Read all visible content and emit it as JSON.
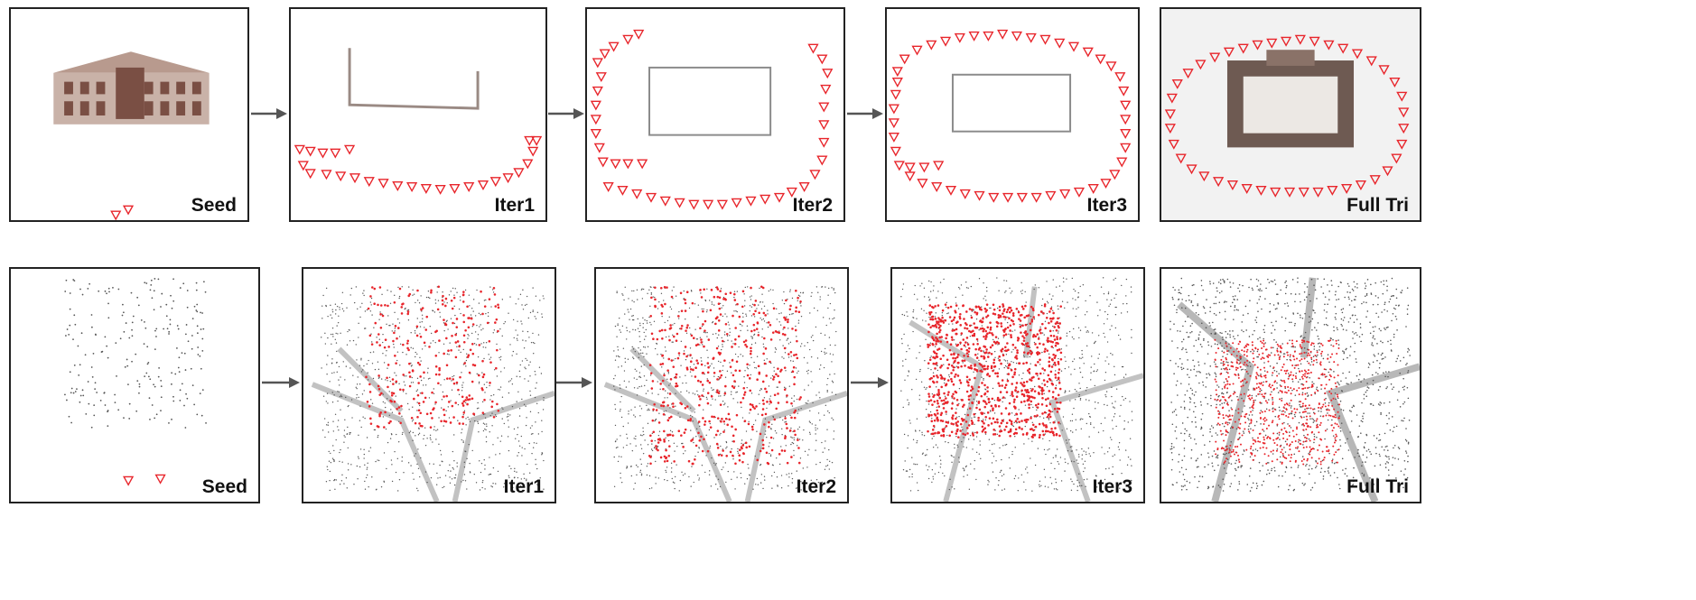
{
  "rows": [
    {
      "scene": "building",
      "panels": [
        {
          "label": "Seed"
        },
        {
          "label": "Iter1"
        },
        {
          "label": "Iter2"
        },
        {
          "label": "Iter3"
        },
        {
          "label": "Full Tri"
        }
      ]
    },
    {
      "scene": "plaza",
      "panels": [
        {
          "label": "Seed"
        },
        {
          "label": "Iter1"
        },
        {
          "label": "Iter2"
        },
        {
          "label": "Iter3"
        },
        {
          "label": "Full Tri"
        }
      ]
    }
  ],
  "colors": {
    "camera": "#e8252b",
    "points": "#555555",
    "facade": "#8a5a4a",
    "frame": "#222222",
    "arrow": "#555555"
  },
  "icons": {
    "camera": "camera-frustum-icon",
    "arrow": "arrow-right-icon"
  }
}
